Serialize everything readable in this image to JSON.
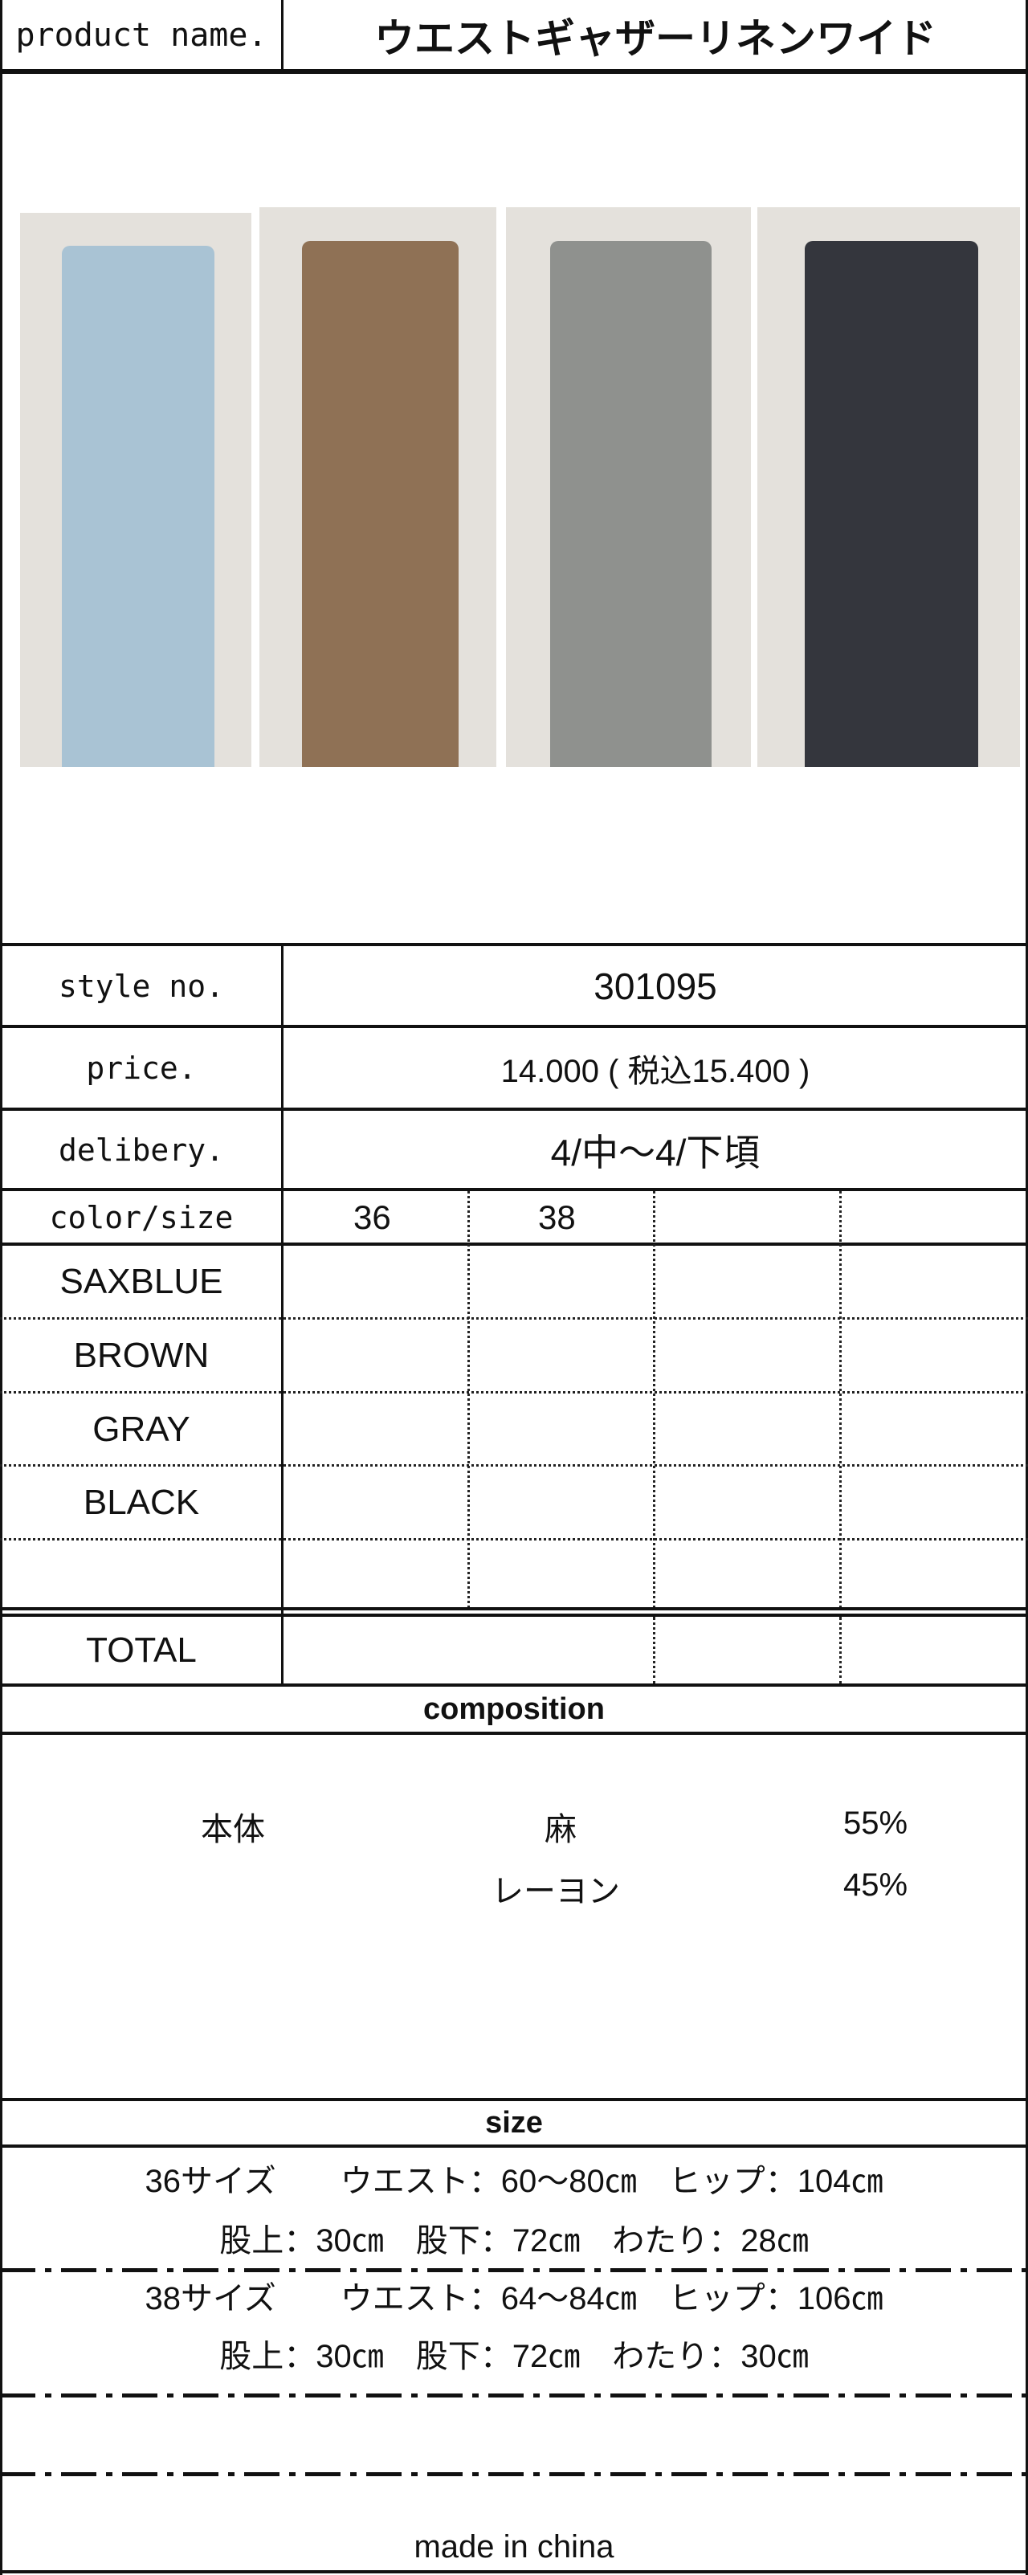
{
  "header": {
    "label": "product name.",
    "title": "ウエストギャザーリネンワイド"
  },
  "photos": [
    {
      "color_name": "SAXBLUE",
      "swatch": "#a9c3d4"
    },
    {
      "color_name": "BROWN",
      "swatch": "#8f7155"
    },
    {
      "color_name": "GRAY",
      "swatch": "#8f918e"
    },
    {
      "color_name": "BLACK",
      "swatch": "#34363d"
    }
  ],
  "info": {
    "style_label": "style no.",
    "style_value": "301095",
    "price_label": "price.",
    "price_value": "14.000 ( 税込15.400 )",
    "delivery_label": "delibery.",
    "delivery_value": "4/中～4/下頃"
  },
  "grid": {
    "header_label": "color/size",
    "sizes": [
      "36",
      "38",
      "",
      ""
    ],
    "colors": [
      "SAXBLUE",
      "BROWN",
      "GRAY",
      "BLACK",
      ""
    ],
    "total_label": "TOTAL"
  },
  "composition": {
    "title": "composition",
    "part": "本体",
    "materials": [
      {
        "name": "麻",
        "percent": "55%"
      },
      {
        "name": "レーヨン",
        "percent": "45%"
      }
    ]
  },
  "size": {
    "title": "size",
    "lines": [
      "36サイズ　　ウエスト：60～80㎝　ヒップ：104㎝",
      "股上：30㎝　股下：72㎝　わたり：28㎝",
      "38サイズ　　ウエスト：64～84㎝　ヒップ：106㎝",
      "股上：30㎝　股下：72㎝　わたり：30㎝"
    ],
    "footer": "made in china"
  }
}
